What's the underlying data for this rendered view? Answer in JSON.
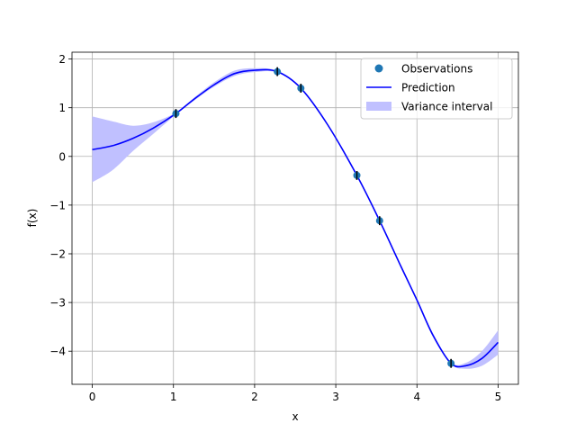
{
  "chart_data": {
    "type": "line",
    "title": "",
    "xlabel": "x",
    "ylabel": "f(x)",
    "xlim": [
      -0.25,
      5.25
    ],
    "ylim": [
      -4.68,
      2.14
    ],
    "grid": true,
    "legend_position": "upper right",
    "x_ticks": [
      0,
      1,
      2,
      3,
      4,
      5
    ],
    "x_tick_labels": [
      "0",
      "1",
      "2",
      "3",
      "4",
      "5"
    ],
    "y_ticks": [
      2,
      1,
      0,
      -1,
      -2,
      -3,
      -4
    ],
    "y_tick_labels": [
      "2",
      "1",
      "0",
      "−1",
      "−2",
      "−3",
      "−4"
    ],
    "legend": [
      {
        "label": "Observations",
        "kind": "marker",
        "color": "#1f77b4"
      },
      {
        "label": "Prediction",
        "kind": "line",
        "color": "#0000ff"
      },
      {
        "label": "Variance interval",
        "kind": "patch",
        "color": "#c0c0ff"
      }
    ],
    "series": [
      {
        "name": "Observations",
        "kind": "scatter",
        "color": "#1f77b4",
        "x": [
          1.03,
          2.28,
          2.57,
          3.26,
          3.54,
          4.42
        ],
        "y": [
          0.88,
          1.74,
          1.4,
          -0.39,
          -1.32,
          -4.25
        ]
      },
      {
        "name": "Prediction",
        "kind": "line",
        "color": "#0000ff",
        "x": [
          0,
          0.25,
          0.5,
          0.75,
          1.03,
          1.25,
          1.5,
          1.75,
          2.0,
          2.28,
          2.57,
          2.9,
          3.26,
          3.54,
          3.8,
          4.0,
          4.2,
          4.42,
          4.6,
          4.8,
          5.0
        ],
        "y": [
          0.14,
          0.22,
          0.37,
          0.58,
          0.88,
          1.17,
          1.47,
          1.7,
          1.77,
          1.74,
          1.4,
          0.65,
          -0.39,
          -1.32,
          -2.25,
          -2.95,
          -3.68,
          -4.25,
          -4.3,
          -4.15,
          -3.82
        ]
      },
      {
        "name": "Variance interval",
        "kind": "band",
        "color": "#c0c0ff",
        "x": [
          0,
          0.25,
          0.5,
          0.75,
          1.03,
          1.25,
          1.5,
          1.75,
          2.0,
          2.28,
          2.57,
          2.9,
          3.26,
          3.54,
          3.8,
          4.0,
          4.2,
          4.42,
          4.6,
          4.8,
          5.0
        ],
        "y_upper": [
          0.82,
          0.72,
          0.63,
          0.7,
          0.9,
          1.2,
          1.52,
          1.76,
          1.81,
          1.76,
          1.42,
          0.67,
          -0.37,
          -1.3,
          -2.22,
          -2.92,
          -3.64,
          -4.23,
          -4.24,
          -4.0,
          -3.57
        ],
        "y_lower": [
          -0.53,
          -0.28,
          0.11,
          0.46,
          0.86,
          1.14,
          1.43,
          1.65,
          1.73,
          1.72,
          1.38,
          0.63,
          -0.41,
          -1.34,
          -2.28,
          -2.98,
          -3.72,
          -4.27,
          -4.36,
          -4.3,
          -4.07
        ]
      }
    ],
    "error_bars": {
      "x": [
        1.03,
        2.28,
        2.57,
        3.26,
        3.54,
        4.42
      ],
      "y": [
        0.88,
        1.74,
        1.4,
        -0.39,
        -1.32,
        -4.25
      ],
      "err": [
        0.09,
        0.09,
        0.09,
        0.09,
        0.09,
        0.09
      ]
    }
  }
}
